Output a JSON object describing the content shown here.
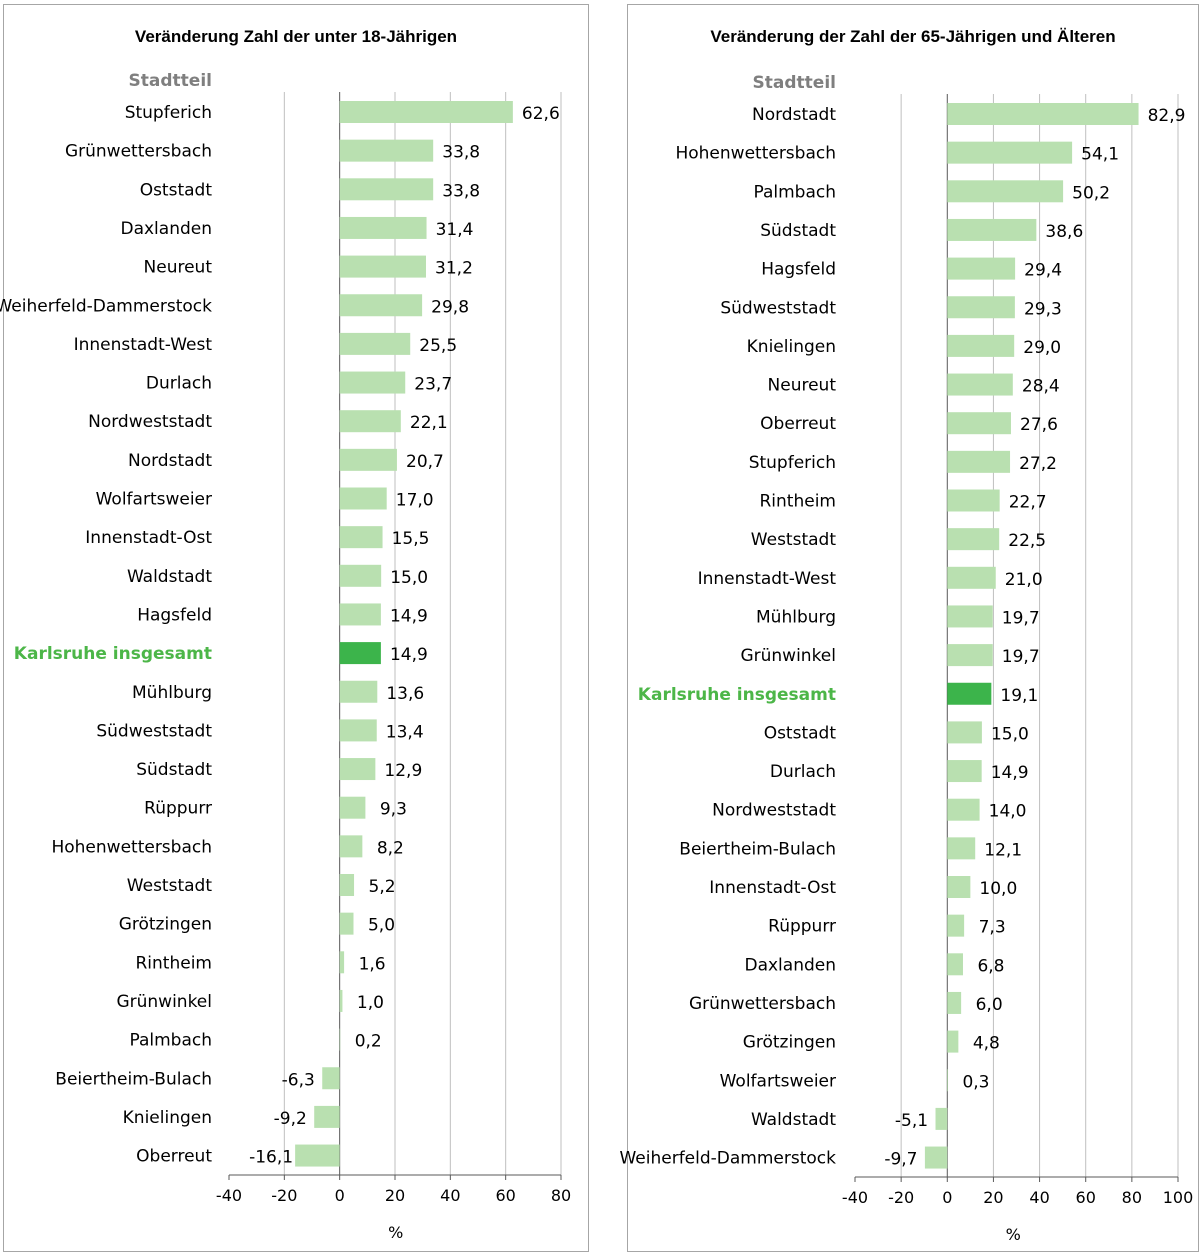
{
  "chart_data": [
    {
      "type": "bar",
      "orientation": "horizontal",
      "title": "Veränderung Zahl der unter 18-Jährigen",
      "category_header": "Stadtteil",
      "xlabel": "%",
      "xlim": [
        -40,
        80
      ],
      "xticks": [
        -40,
        -20,
        0,
        20,
        40,
        60,
        80
      ],
      "grid": true,
      "highlight_category": "Karlsruhe insgesamt",
      "colors": {
        "bar": "#b9e0b0",
        "highlight_bar": "#3cb44b",
        "highlight_label": "#4cb648",
        "grid": "#bfbfbf"
      },
      "categories": [
        "Stupferich",
        "Grünwettersbach",
        "Oststadt",
        "Daxlanden",
        "Neureut",
        "Weiherfeld-Dammerstock",
        "Innenstadt-West",
        "Durlach",
        "Nordweststadt",
        "Nordstadt",
        "Wolfartsweier",
        "Innenstadt-Ost",
        "Waldstadt",
        "Hagsfeld",
        "Karlsruhe insgesamt",
        "Mühlburg",
        "Südweststadt",
        "Südstadt",
        "Rüppurr",
        "Hohenwettersbach",
        "Weststadt",
        "Grötzingen",
        "Rintheim",
        "Grünwinkel",
        "Palmbach",
        "Beiertheim-Bulach",
        "Knielingen",
        "Oberreut"
      ],
      "values": [
        62.6,
        33.8,
        33.8,
        31.4,
        31.2,
        29.8,
        25.5,
        23.7,
        22.1,
        20.7,
        17.0,
        15.5,
        15.0,
        14.9,
        14.9,
        13.6,
        13.4,
        12.9,
        9.3,
        8.2,
        5.2,
        5.0,
        1.6,
        1.0,
        0.2,
        -6.3,
        -9.2,
        -16.1
      ],
      "value_labels": [
        "62,6",
        "33,8",
        "33,8",
        "31,4",
        "31,2",
        "29,8",
        "25,5",
        "23,7",
        "22,1",
        "20,7",
        "17,0",
        "15,5",
        "15,0",
        "14,9",
        "14,9",
        "13,6",
        "13,4",
        "12,9",
        "9,3",
        "8,2",
        "5,2",
        "5,0",
        "1,6",
        "1,0",
        "0,2",
        "-6,3",
        "-9,2",
        "-16,1"
      ]
    },
    {
      "type": "bar",
      "orientation": "horizontal",
      "title": "Veränderung der Zahl der 65-Jährigen und Älteren",
      "category_header": "Stadtteil",
      "xlabel": "%",
      "xlim": [
        -40,
        100
      ],
      "xticks": [
        -40,
        -20,
        0,
        20,
        40,
        60,
        80,
        100
      ],
      "grid": true,
      "highlight_category": "Karlsruhe insgesamt",
      "colors": {
        "bar": "#b9e0b0",
        "highlight_bar": "#3cb44b",
        "highlight_label": "#4cb648",
        "grid": "#bfbfbf"
      },
      "categories": [
        "Nordstadt",
        "Hohenwettersbach",
        "Palmbach",
        "Südstadt",
        "Hagsfeld",
        "Südweststadt",
        "Knielingen",
        "Neureut",
        "Oberreut",
        "Stupferich",
        "Rintheim",
        "Weststadt",
        "Innenstadt-West",
        "Mühlburg",
        "Grünwinkel",
        "Karlsruhe insgesamt",
        "Oststadt",
        "Durlach",
        "Nordweststadt",
        "Beiertheim-Bulach",
        "Innenstadt-Ost",
        "Rüppurr",
        "Daxlanden",
        "Grünwettersbach",
        "Grötzingen",
        "Wolfartsweier",
        "Waldstadt",
        "Weiherfeld-Dammerstock"
      ],
      "values": [
        82.9,
        54.1,
        50.2,
        38.6,
        29.4,
        29.3,
        29.0,
        28.4,
        27.6,
        27.2,
        22.7,
        22.5,
        21.0,
        19.7,
        19.7,
        19.1,
        15.0,
        14.9,
        14.0,
        12.1,
        10.0,
        7.3,
        6.8,
        6.0,
        4.8,
        0.3,
        -5.1,
        -9.7
      ],
      "value_labels": [
        "82,9",
        "54,1",
        "50,2",
        "38,6",
        "29,4",
        "29,3",
        "29,0",
        "28,4",
        "27,6",
        "27,2",
        "22,7",
        "22,5",
        "21,0",
        "19,7",
        "19,7",
        "19,1",
        "15,0",
        "14,9",
        "14,0",
        "12,1",
        "10,0",
        "7,3",
        "6,8",
        "6,0",
        "4,8",
        "0,3",
        "-5,1",
        "-9,7"
      ]
    }
  ]
}
